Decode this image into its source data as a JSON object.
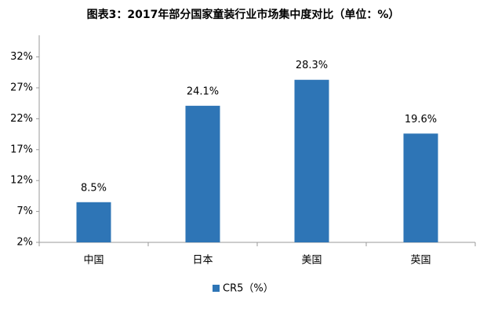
{
  "chart_data": {
    "type": "bar",
    "title": "图表3：2017年部分国家童装行业市场集中度对比（单位：%）",
    "categories": [
      "中国",
      "日本",
      "美国",
      "英国"
    ],
    "series": [
      {
        "name": "CR5（%）",
        "color": "#2e75b6",
        "values": [
          8.5,
          24.1,
          28.3,
          19.6
        ],
        "value_labels": [
          "8.5%",
          "24.1%",
          "28.3%",
          "19.6%"
        ]
      }
    ],
    "ylim": [
      2,
      35.5
    ],
    "yticks": [
      {
        "value": 2,
        "label": "2%"
      },
      {
        "value": 7,
        "label": "7%"
      },
      {
        "value": 12,
        "label": "12%"
      },
      {
        "value": 17,
        "label": "17%"
      },
      {
        "value": 22,
        "label": "22%"
      },
      {
        "value": 27,
        "label": "27%"
      },
      {
        "value": 32,
        "label": "32%"
      }
    ],
    "legend": "bottom"
  }
}
